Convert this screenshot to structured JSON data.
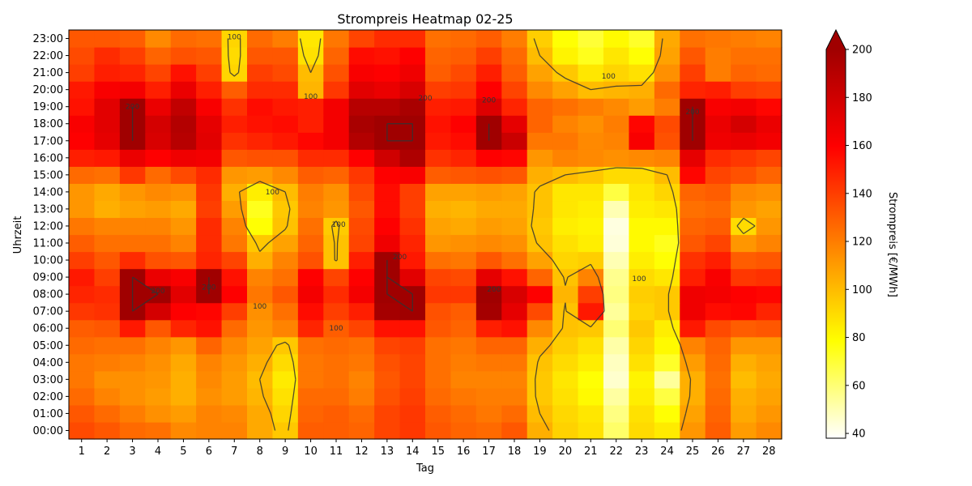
{
  "chart_data": {
    "type": "heatmap",
    "title": "Strompreis Heatmap 02-25",
    "xlabel": "Tag",
    "ylabel": "Uhrzeit",
    "colorbar_label": "Strompreis [€/MWh]",
    "x_categories": [
      "1",
      "2",
      "3",
      "4",
      "5",
      "6",
      "7",
      "8",
      "9",
      "10",
      "11",
      "12",
      "13",
      "14",
      "15",
      "16",
      "17",
      "18",
      "19",
      "20",
      "21",
      "22",
      "23",
      "24",
      "25",
      "26",
      "27",
      "28"
    ],
    "y_categories": [
      "00:00",
      "01:00",
      "02:00",
      "03:00",
      "04:00",
      "05:00",
      "06:00",
      "07:00",
      "08:00",
      "09:00",
      "10:00",
      "11:00",
      "12:00",
      "13:00",
      "14:00",
      "15:00",
      "16:00",
      "17:00",
      "18:00",
      "19:00",
      "20:00",
      "21:00",
      "22:00",
      "23:00"
    ],
    "value_range": [
      38,
      200
    ],
    "colorbar_ticks": [
      40,
      60,
      80,
      100,
      120,
      140,
      160,
      180,
      200
    ],
    "colorbar_extend": "max",
    "colormap": [
      "#ffffff",
      "#ffff00",
      "#ff8000",
      "#ff0000",
      "#a00000"
    ],
    "contour_levels": [
      100,
      200
    ],
    "contour_labels": [
      {
        "text": "100",
        "day": 7,
        "hour": 23.1
      },
      {
        "text": "100",
        "day": 10,
        "hour": 19.6
      },
      {
        "text": "100",
        "day": 8.5,
        "hour": 14
      },
      {
        "text": "100",
        "day": 11.1,
        "hour": 12.1
      },
      {
        "text": "100",
        "day": 8,
        "hour": 7.3
      },
      {
        "text": "100",
        "day": 11,
        "hour": 6
      },
      {
        "text": "100",
        "day": 21.7,
        "hour": 20.8
      },
      {
        "text": "100",
        "day": 22.9,
        "hour": 8.9
      },
      {
        "text": "200",
        "day": 3,
        "hour": 19
      },
      {
        "text": "200",
        "day": 4,
        "hour": 8.2
      },
      {
        "text": "200",
        "day": 6,
        "hour": 8.4
      },
      {
        "text": "200",
        "day": 13.5,
        "hour": 10.2
      },
      {
        "text": "200",
        "day": 14.5,
        "hour": 19.5
      },
      {
        "text": "200",
        "day": 17,
        "hour": 19.4
      },
      {
        "text": "200",
        "day": 17.2,
        "hour": 8.3
      },
      {
        "text": "200",
        "day": 25,
        "hour": 18.7
      }
    ],
    "grid": false,
    "values": [
      [
        136,
        132,
        126,
        124,
        116,
        118,
        118,
        106,
        96,
        130,
        130,
        128,
        138,
        142,
        132,
        128,
        126,
        132,
        104,
        93,
        88,
        62,
        90,
        85,
        112,
        130,
        110,
        116
      ],
      [
        132,
        126,
        120,
        114,
        110,
        118,
        116,
        106,
        92,
        128,
        130,
        126,
        138,
        142,
        130,
        126,
        122,
        126,
        100,
        91,
        86,
        58,
        88,
        78,
        108,
        128,
        106,
        112
      ],
      [
        126,
        118,
        114,
        110,
        104,
        114,
        110,
        102,
        88,
        126,
        126,
        120,
        134,
        140,
        126,
        122,
        120,
        120,
        96,
        88,
        80,
        53,
        84,
        68,
        104,
        126,
        104,
        108
      ],
      [
        122,
        114,
        114,
        112,
        104,
        116,
        110,
        100,
        85,
        122,
        124,
        118,
        132,
        138,
        124,
        118,
        118,
        118,
        96,
        86,
        78,
        46,
        82,
        54,
        104,
        124,
        100,
        106
      ],
      [
        122,
        120,
        118,
        114,
        106,
        118,
        112,
        104,
        90,
        122,
        124,
        122,
        134,
        138,
        124,
        120,
        122,
        122,
        98,
        90,
        84,
        48,
        88,
        72,
        110,
        126,
        104,
        108
      ],
      [
        126,
        124,
        124,
        118,
        112,
        128,
        116,
        108,
        96,
        124,
        126,
        124,
        138,
        140,
        124,
        122,
        128,
        128,
        104,
        94,
        88,
        52,
        92,
        80,
        118,
        128,
        112,
        112
      ],
      [
        130,
        132,
        152,
        132,
        148,
        154,
        126,
        112,
        118,
        148,
        130,
        138,
        154,
        154,
        132,
        128,
        150,
        154,
        116,
        98,
        96,
        60,
        96,
        84,
        152,
        136,
        130,
        132
      ],
      [
        142,
        144,
        200,
        178,
        160,
        158,
        140,
        114,
        124,
        156,
        140,
        150,
        198,
        200,
        134,
        130,
        198,
        170,
        136,
        98,
        152,
        54,
        92,
        96,
        166,
        156,
        158,
        148
      ],
      [
        148,
        146,
        200,
        200,
        172,
        200,
        160,
        122,
        132,
        164,
        146,
        164,
        200,
        200,
        142,
        142,
        200,
        176,
        160,
        102,
        140,
        58,
        94,
        96,
        166,
        164,
        160,
        158
      ],
      [
        152,
        140,
        200,
        168,
        162,
        200,
        154,
        118,
        124,
        160,
        138,
        160,
        200,
        172,
        138,
        136,
        170,
        154,
        128,
        98,
        118,
        56,
        90,
        86,
        150,
        162,
        142,
        144
      ],
      [
        140,
        132,
        146,
        134,
        132,
        148,
        138,
        104,
        118,
        134,
        98,
        150,
        200,
        152,
        124,
        122,
        132,
        124,
        108,
        92,
        94,
        50,
        84,
        78,
        144,
        150,
        130,
        132
      ],
      [
        130,
        124,
        124,
        124,
        118,
        146,
        122,
        96,
        108,
        128,
        98,
        138,
        166,
        148,
        112,
        114,
        116,
        114,
        98,
        88,
        84,
        44,
        80,
        74,
        132,
        138,
        112,
        118
      ],
      [
        122,
        118,
        118,
        118,
        112,
        146,
        118,
        78,
        98,
        124,
        95,
        136,
        160,
        144,
        108,
        106,
        110,
        108,
        96,
        84,
        82,
        43,
        80,
        80,
        128,
        130,
        90,
        112
      ],
      [
        112,
        104,
        108,
        110,
        106,
        140,
        110,
        74,
        96,
        118,
        112,
        132,
        156,
        140,
        104,
        102,
        106,
        106,
        98,
        86,
        84,
        50,
        84,
        86,
        124,
        126,
        112,
        108
      ],
      [
        112,
        106,
        112,
        116,
        114,
        142,
        104,
        84,
        100,
        120,
        114,
        136,
        156,
        140,
        108,
        108,
        110,
        108,
        98,
        86,
        86,
        68,
        86,
        92,
        128,
        130,
        116,
        114
      ],
      [
        126,
        124,
        142,
        126,
        136,
        146,
        112,
        110,
        116,
        130,
        128,
        142,
        160,
        162,
        130,
        132,
        134,
        132,
        104,
        100,
        96,
        90,
        90,
        100,
        158,
        138,
        134,
        128
      ],
      [
        150,
        152,
        168,
        160,
        166,
        164,
        132,
        134,
        134,
        146,
        146,
        160,
        180,
        194,
        144,
        148,
        160,
        158,
        112,
        118,
        116,
        114,
        116,
        118,
        170,
        146,
        142,
        138
      ],
      [
        160,
        170,
        200,
        176,
        190,
        172,
        144,
        148,
        152,
        158,
        164,
        192,
        200,
        200,
        152,
        156,
        200,
        182,
        122,
        122,
        116,
        118,
        162,
        134,
        200,
        166,
        168,
        164
      ],
      [
        162,
        172,
        200,
        178,
        192,
        170,
        150,
        154,
        156,
        150,
        164,
        196,
        200,
        200,
        154,
        160,
        200,
        170,
        128,
        118,
        114,
        120,
        158,
        136,
        200,
        168,
        178,
        168
      ],
      [
        154,
        172,
        200,
        168,
        186,
        162,
        144,
        156,
        152,
        150,
        164,
        190,
        190,
        196,
        150,
        152,
        174,
        148,
        128,
        124,
        120,
        116,
        110,
        120,
        200,
        162,
        164,
        158
      ],
      [
        152,
        162,
        164,
        150,
        168,
        150,
        130,
        146,
        146,
        102,
        142,
        172,
        168,
        176,
        140,
        142,
        160,
        138,
        116,
        108,
        100,
        102,
        104,
        126,
        148,
        150,
        140,
        138
      ],
      [
        140,
        150,
        148,
        138,
        154,
        140,
        92,
        140,
        136,
        100,
        134,
        162,
        160,
        166,
        130,
        136,
        150,
        130,
        108,
        96,
        86,
        92,
        88,
        114,
        140,
        120,
        128,
        126
      ],
      [
        136,
        146,
        140,
        128,
        134,
        132,
        90,
        132,
        132,
        88,
        128,
        156,
        154,
        160,
        128,
        130,
        140,
        126,
        100,
        82,
        74,
        86,
        78,
        108,
        132,
        120,
        124,
        124
      ],
      [
        132,
        132,
        130,
        116,
        126,
        124,
        92,
        126,
        120,
        86,
        122,
        138,
        146,
        146,
        124,
        126,
        130,
        120,
        94,
        78,
        70,
        80,
        72,
        106,
        124,
        122,
        120,
        118
      ]
    ]
  }
}
